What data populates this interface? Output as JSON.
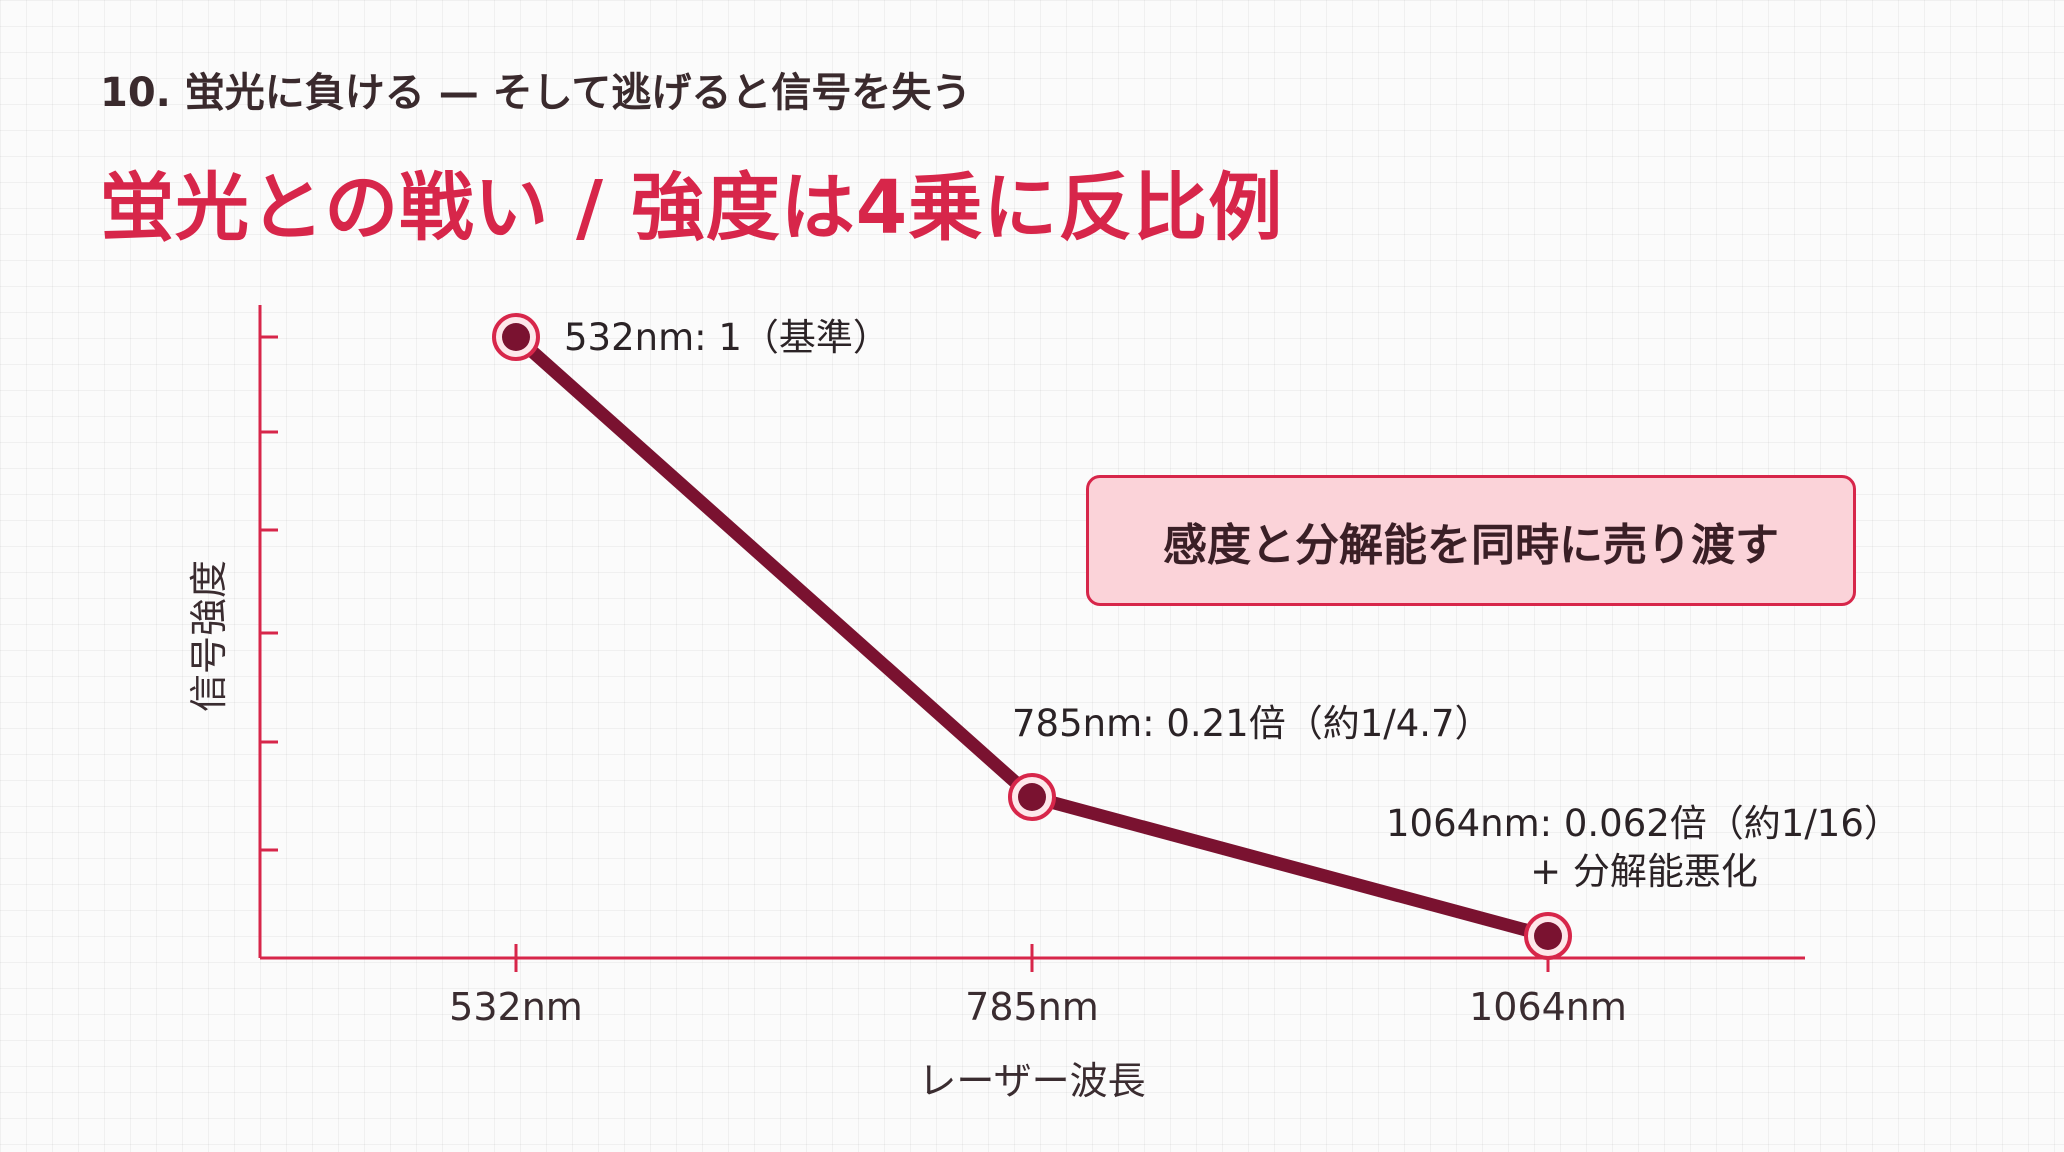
{
  "header": {
    "eyebrow": "10. 蛍光に負ける — そして逃げると信号を失う",
    "title": "蛍光との戦い / 強度は4乗に反比例"
  },
  "callout": {
    "text": "感度と分解能を同時に売り渡す"
  },
  "colors": {
    "accent": "#d7264a",
    "line": "#7a1230",
    "marker_fill": "#7a1230",
    "marker_ring": "#d7264a",
    "callout_bg": "#fbd3d9"
  },
  "chart_data": {
    "type": "line",
    "title": "",
    "xlabel": "レーザー波長",
    "ylabel": "信号強度",
    "categories": [
      "532nm",
      "785nm",
      "1064nm"
    ],
    "series": [
      {
        "values": [
          1,
          0.21,
          0.062
        ]
      }
    ],
    "ylim": [
      0,
      1.2
    ],
    "annotations": [
      [
        "532nm: 1（基準）"
      ],
      [
        "785nm: 0.21倍（約1/4.7）"
      ],
      [
        "1064nm: 0.062倍（約1/16）",
        "+ 分解能悪化"
      ]
    ],
    "grid": false,
    "legend": "none"
  }
}
